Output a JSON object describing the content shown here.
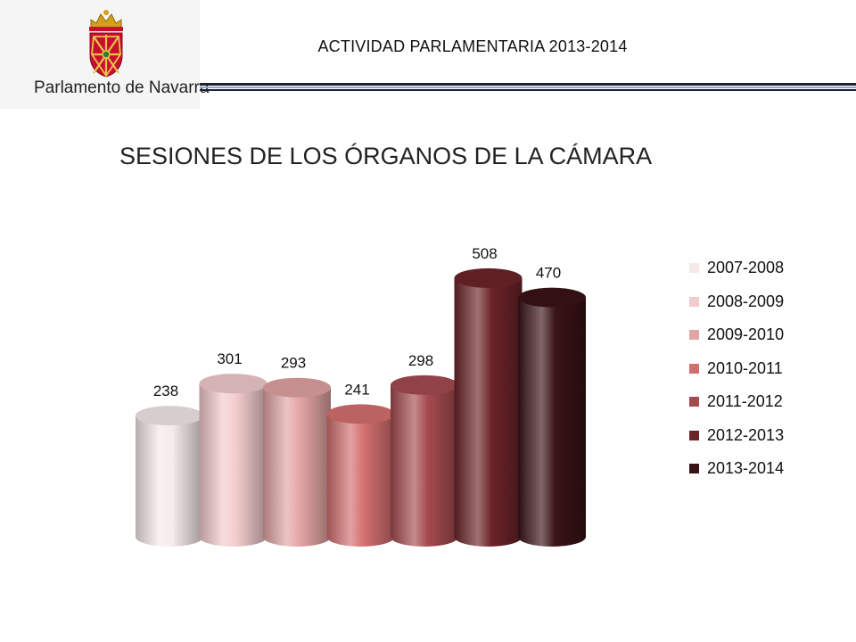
{
  "header": {
    "title": "ACTIVIDAD PARLAMENTARIA 2013-2014",
    "logo_text": "Parlamento de Navarra",
    "logo_icon": "navarra-coat-of-arms-icon"
  },
  "colors": {
    "header_rule": "#1c2433",
    "logo_red": "#c8102e",
    "logo_gold": "#d4a017"
  },
  "chart_data": {
    "type": "bar",
    "style": "3d-cylinder",
    "title": "SESIONES DE LOS ÓRGANOS DE LA CÁMARA",
    "xlabel": "",
    "ylabel": "",
    "legend_position": "right",
    "grid": false,
    "series": [
      {
        "name": "2007-2008",
        "value": 238,
        "color": "#f5e9e9"
      },
      {
        "name": "2008-2009",
        "value": 301,
        "color": "#f2cbcc"
      },
      {
        "name": "2009-2010",
        "value": 293,
        "color": "#e2a4a4"
      },
      {
        "name": "2010-2011",
        "value": 241,
        "color": "#d46f70"
      },
      {
        "name": "2011-2012",
        "value": 298,
        "color": "#a54b4f"
      },
      {
        "name": "2012-2013",
        "value": 508,
        "color": "#6b2428"
      },
      {
        "name": "2013-2014",
        "value": 470,
        "color": "#3a1316"
      }
    ]
  }
}
